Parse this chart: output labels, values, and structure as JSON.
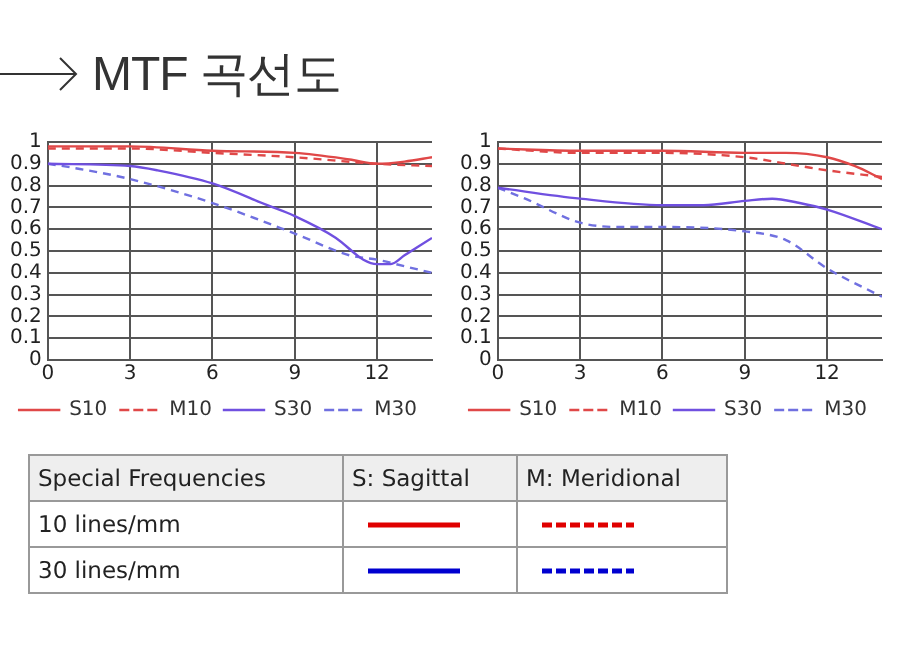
{
  "chart_data": [
    {
      "type": "line",
      "title": "MTF 곡선도",
      "xlim": [
        0,
        14
      ],
      "xticks": [
        0,
        3,
        6,
        9,
        12
      ],
      "ylim": [
        0,
        1
      ],
      "yticks": [
        0,
        0.1,
        0.2,
        0.3,
        0.4,
        0.5,
        0.6,
        0.7,
        0.8,
        0.9,
        1
      ],
      "grid": true,
      "legend": "bottom",
      "marker": "none",
      "series": [
        {
          "name": "S10",
          "color": "#e04848",
          "line_style": "solid",
          "x": [
            0,
            3,
            6,
            9,
            11,
            12,
            13,
            14
          ],
          "values": [
            0.98,
            0.98,
            0.96,
            0.95,
            0.92,
            0.9,
            0.91,
            0.93
          ]
        },
        {
          "name": "M10",
          "color": "#e04848",
          "line_style": "dashed",
          "x": [
            0,
            3,
            6,
            9,
            12,
            14
          ],
          "values": [
            0.97,
            0.97,
            0.95,
            0.93,
            0.9,
            0.89
          ]
        },
        {
          "name": "S30",
          "color": "#7050e0",
          "line_style": "solid",
          "x": [
            0,
            3,
            4,
            6,
            8,
            9,
            10.5,
            11.5,
            12,
            12.5,
            13,
            14
          ],
          "values": [
            0.9,
            0.89,
            0.87,
            0.81,
            0.71,
            0.66,
            0.56,
            0.46,
            0.44,
            0.44,
            0.48,
            0.56
          ]
        },
        {
          "name": "M30",
          "color": "#7070e0",
          "line_style": "dashed",
          "x": [
            0,
            1,
            3,
            6,
            9,
            11,
            12,
            13,
            14
          ],
          "values": [
            0.9,
            0.88,
            0.83,
            0.72,
            0.58,
            0.48,
            0.46,
            0.43,
            0.4
          ]
        }
      ]
    },
    {
      "type": "line",
      "xlim": [
        0,
        14
      ],
      "xticks": [
        0,
        3,
        6,
        9,
        12
      ],
      "ylim": [
        0,
        1
      ],
      "yticks": [
        0,
        0.1,
        0.2,
        0.3,
        0.4,
        0.5,
        0.6,
        0.7,
        0.8,
        0.9,
        1
      ],
      "grid": true,
      "legend": "bottom",
      "marker": "none",
      "series": [
        {
          "name": "S10",
          "color": "#e04848",
          "line_style": "solid",
          "x": [
            0,
            3,
            6,
            9,
            10.5,
            12,
            13,
            14
          ],
          "values": [
            0.97,
            0.96,
            0.96,
            0.95,
            0.95,
            0.93,
            0.89,
            0.83
          ]
        },
        {
          "name": "M10",
          "color": "#e04848",
          "line_style": "dashed",
          "x": [
            0,
            3,
            6,
            9,
            11,
            12,
            14
          ],
          "values": [
            0.97,
            0.95,
            0.95,
            0.93,
            0.89,
            0.87,
            0.84
          ]
        },
        {
          "name": "S30",
          "color": "#7050e0",
          "line_style": "solid",
          "x": [
            0,
            3,
            6,
            7.5,
            9,
            10,
            11,
            12,
            14
          ],
          "values": [
            0.79,
            0.74,
            0.71,
            0.71,
            0.73,
            0.74,
            0.72,
            0.69,
            0.6
          ]
        },
        {
          "name": "M30",
          "color": "#7070e0",
          "line_style": "dashed",
          "x": [
            0,
            1,
            3,
            4.5,
            6,
            9,
            10.5,
            12,
            14
          ],
          "values": [
            0.79,
            0.74,
            0.63,
            0.61,
            0.61,
            0.59,
            0.55,
            0.42,
            0.29
          ]
        }
      ]
    },
    {
      "type": "other",
      "annotations": [
        "Special Frequencies",
        "S: Sagittal",
        "M: Meridional",
        "10 lines/mm",
        "30 lines/mm"
      ]
    }
  ]
}
